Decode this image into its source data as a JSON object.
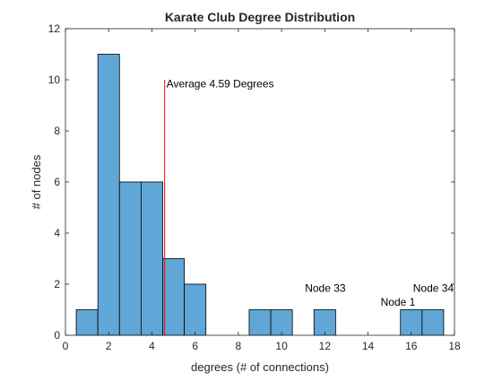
{
  "chart_data": {
    "type": "bar",
    "title": "Karate Club Degree Distribution",
    "xlabel": "degrees (# of connections)",
    "ylabel": "# of nodes",
    "xlim": [
      0,
      18
    ],
    "ylim": [
      0,
      12
    ],
    "xticks": [
      0,
      2,
      4,
      6,
      8,
      10,
      12,
      14,
      16,
      18
    ],
    "yticks": [
      0,
      2,
      4,
      6,
      8,
      10,
      12
    ],
    "grid": false,
    "bin_width": 1,
    "bins": [
      {
        "x0": 0.5,
        "x1": 1.5,
        "count": 1
      },
      {
        "x0": 1.5,
        "x1": 2.5,
        "count": 11
      },
      {
        "x0": 2.5,
        "x1": 3.5,
        "count": 6
      },
      {
        "x0": 3.5,
        "x1": 4.5,
        "count": 6
      },
      {
        "x0": 4.5,
        "x1": 5.5,
        "count": 3
      },
      {
        "x0": 5.5,
        "x1": 6.5,
        "count": 2
      },
      {
        "x0": 8.5,
        "x1": 9.5,
        "count": 1
      },
      {
        "x0": 9.5,
        "x1": 10.5,
        "count": 1
      },
      {
        "x0": 11.5,
        "x1": 12.5,
        "count": 1
      },
      {
        "x0": 15.5,
        "x1": 16.5,
        "count": 1
      },
      {
        "x0": 16.5,
        "x1": 17.5,
        "count": 1
      }
    ],
    "average_line": {
      "x": 4.59,
      "y_top": 10,
      "color": "#ff0000"
    },
    "bar_color": "#60a6d6",
    "annotations": [
      {
        "text": "Average 4.59 Degrees",
        "x": 4.59,
        "y": 9.85
      },
      {
        "text": "Node 33",
        "x": 11.0,
        "y": 1.85
      },
      {
        "text": "Node 1",
        "x": 14.5,
        "y": 1.3
      },
      {
        "text": "Node 34",
        "x": 16.0,
        "y": 1.85
      }
    ]
  }
}
